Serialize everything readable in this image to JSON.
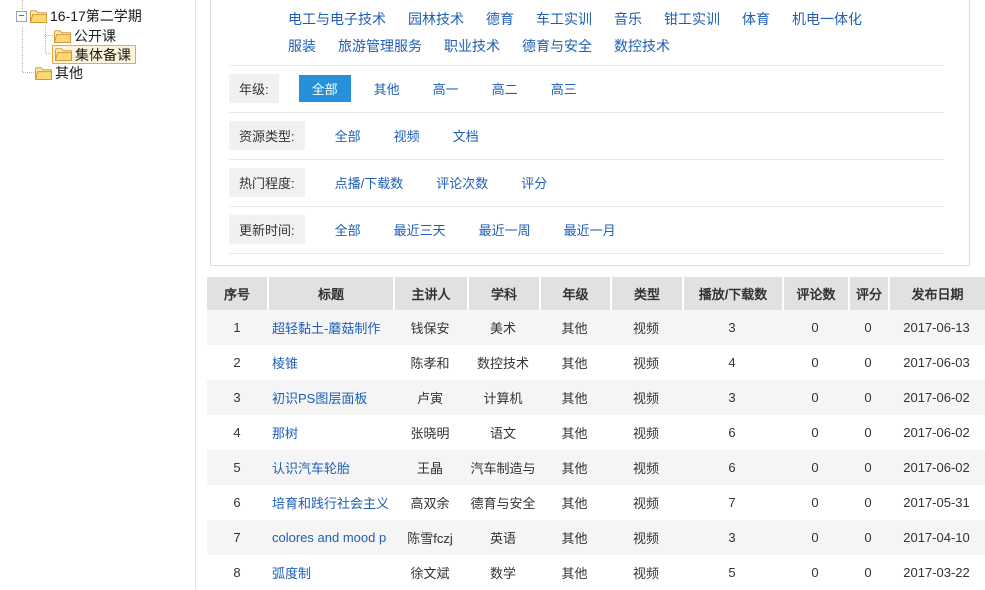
{
  "colors": {
    "link_blue": "#1e5fb5",
    "active_blue": "#2691d9",
    "header_gray": "#e1e1e1",
    "stripe_gray": "#f5f5f5",
    "selected_bg": "#fdf3d9",
    "selected_border": "#eda93f"
  },
  "sidebar": {
    "expander_glyph": "−",
    "tree": {
      "root1": {
        "label": "16-17第二学期"
      },
      "child1": {
        "label": "公开课"
      },
      "child2": {
        "label": "集体备课",
        "selected": true
      },
      "root2": {
        "label": "其他"
      }
    }
  },
  "subjects": {
    "rows": [
      [
        "电工与电子技术",
        "园林技术",
        "德育",
        "车工实训",
        "音乐",
        "钳工实训",
        "体育",
        "机电一体化"
      ],
      [
        "服装",
        "旅游管理服务",
        "职业技术",
        "德育与安全",
        "数控技术"
      ]
    ]
  },
  "filters": [
    {
      "label": "年级:",
      "options": [
        {
          "text": "全部",
          "active": true
        },
        {
          "text": "其他"
        },
        {
          "text": "高一"
        },
        {
          "text": "高二"
        },
        {
          "text": "高三"
        }
      ]
    },
    {
      "label": "资源类型:",
      "options": [
        {
          "text": "全部"
        },
        {
          "text": "视频"
        },
        {
          "text": "文档"
        }
      ]
    },
    {
      "label": "热门程度:",
      "options": [
        {
          "text": "点播/下载数"
        },
        {
          "text": "评论次数"
        },
        {
          "text": "评分"
        }
      ]
    },
    {
      "label": "更新时间:",
      "options": [
        {
          "text": "全部"
        },
        {
          "text": "最近三天"
        },
        {
          "text": "最近一周"
        },
        {
          "text": "最近一月"
        }
      ]
    }
  ],
  "table": {
    "columns": [
      "序号",
      "标题",
      "主讲人",
      "学科",
      "年级",
      "类型",
      "播放/下载数",
      "评论数",
      "评分",
      "发布日期"
    ],
    "rows": [
      [
        "1",
        "超轻黏土-蘑菇制作",
        "钱保安",
        "美术",
        "其他",
        "视频",
        "3",
        "0",
        "0",
        "2017-06-13"
      ],
      [
        "2",
        "棱锥",
        "陈孝和",
        "数控技术",
        "其他",
        "视频",
        "4",
        "0",
        "0",
        "2017-06-03"
      ],
      [
        "3",
        "初识PS图层面板",
        "卢寅",
        "计算机",
        "其他",
        "视频",
        "3",
        "0",
        "0",
        "2017-06-02"
      ],
      [
        "4",
        "那树",
        "张晓明",
        "语文",
        "其他",
        "视频",
        "6",
        "0",
        "0",
        "2017-06-02"
      ],
      [
        "5",
        "认识汽车轮胎",
        "王晶",
        "汽车制造与",
        "其他",
        "视频",
        "6",
        "0",
        "0",
        "2017-06-02"
      ],
      [
        "6",
        "培育和践行社会主义",
        "高双余",
        "德育与安全",
        "其他",
        "视频",
        "7",
        "0",
        "0",
        "2017-05-31"
      ],
      [
        "7",
        "colores and mood p",
        "陈雪fczj",
        "英语",
        "其他",
        "视频",
        "3",
        "0",
        "0",
        "2017-04-10"
      ],
      [
        "8",
        "弧度制",
        "徐文斌",
        "数学",
        "其他",
        "视频",
        "5",
        "0",
        "0",
        "2017-03-22"
      ]
    ]
  }
}
